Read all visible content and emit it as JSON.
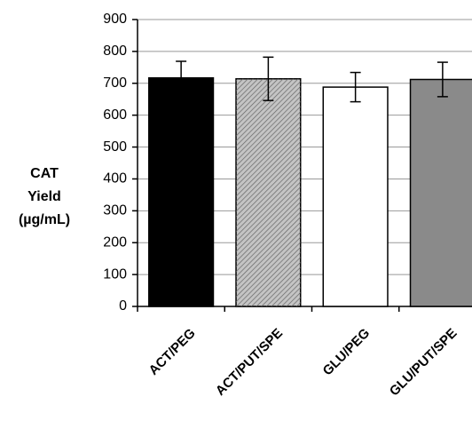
{
  "chart_data": {
    "type": "bar",
    "y_label": [
      "CAT",
      "Yield",
      "(µg/mL)"
    ],
    "categories": [
      "ACT/PEG",
      "ACT/PUT/SPE",
      "GLU/PEG",
      "GLU/PUT/SPE"
    ],
    "values": [
      717,
      714,
      688,
      712
    ],
    "errors": [
      52,
      68,
      46,
      54
    ],
    "colors": [
      "#000000",
      "#c4c4c4",
      "#ffffff",
      "#8a8a8a"
    ],
    "hatched": [
      false,
      true,
      false,
      false
    ],
    "ylim": [
      0,
      900
    ],
    "yticks": [
      0,
      100,
      200,
      300,
      400,
      500,
      600,
      700,
      800,
      900
    ],
    "grid": true
  }
}
